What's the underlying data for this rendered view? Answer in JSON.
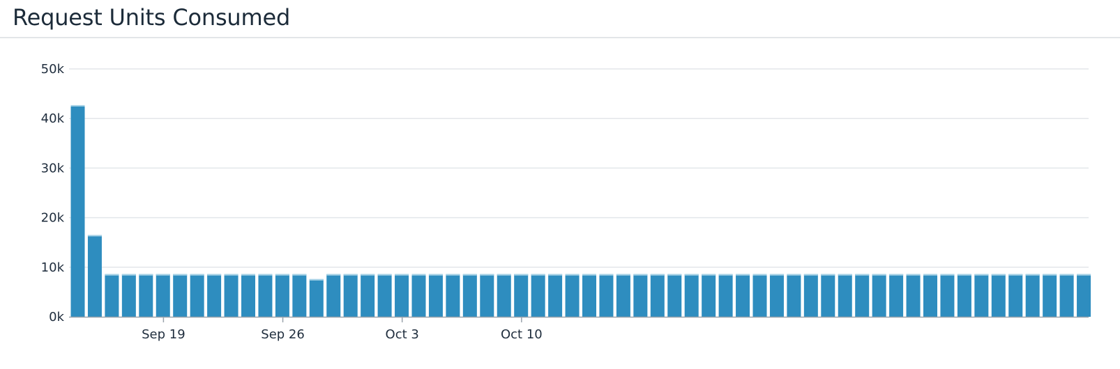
{
  "widget": {
    "title": "Request Units Consumed"
  },
  "chart_data": {
    "type": "bar",
    "title": "Request Units Consumed",
    "xlabel": "",
    "ylabel": "",
    "ylim": [
      0,
      50000
    ],
    "yticks": [
      {
        "value": 0,
        "label": "0k"
      },
      {
        "value": 10000,
        "label": "10k"
      },
      {
        "value": 20000,
        "label": "20k"
      },
      {
        "value": 30000,
        "label": "30k"
      },
      {
        "value": 40000,
        "label": "40k"
      },
      {
        "value": 50000,
        "label": "50k"
      }
    ],
    "grid": true,
    "legend": "none",
    "bar_color": "#2e8dbf",
    "x": [
      "2023-09-17",
      "2023-09-18",
      "2023-09-19",
      "2023-09-20",
      "2023-09-21",
      "2023-09-22",
      "2023-09-23",
      "2023-09-24",
      "2023-09-25",
      "2023-09-26",
      "2023-09-27",
      "2023-09-28",
      "2023-09-29",
      "2023-09-30",
      "2023-10-01",
      "2023-10-02",
      "2023-10-03",
      "2023-10-04",
      "2023-10-05",
      "2023-10-06",
      "2023-10-07",
      "2023-10-08",
      "2023-10-09",
      "2023-10-10",
      "2023-10-11",
      "2023-10-12",
      "2023-10-13",
      "2023-10-14",
      "2023-10-15",
      "2023-10-16",
      "2023-10-17",
      "2023-10-18",
      "2023-10-19",
      "2023-10-20",
      "2023-10-21",
      "2023-10-22",
      "2023-10-23",
      "2023-10-24",
      "2023-10-25",
      "2023-10-26",
      "2023-10-27",
      "2023-10-28",
      "2023-10-29",
      "2023-10-30",
      "2023-10-31",
      "2023-11-01",
      "2023-11-02",
      "2023-11-03",
      "2023-11-04",
      "2023-11-05",
      "2023-11-06",
      "2023-11-07",
      "2023-11-08",
      "2023-11-09",
      "2023-11-10",
      "2023-11-11",
      "2023-11-12",
      "2023-11-13",
      "2023-11-14",
      "2023-11-15"
    ],
    "values": [
      42700,
      16500,
      8600,
      8600,
      8600,
      8600,
      8600,
      8600,
      8600,
      8600,
      8600,
      8600,
      8600,
      8600,
      7600,
      8600,
      8600,
      8600,
      8600,
      8600,
      8600,
      8600,
      8600,
      8600,
      8600,
      8600,
      8600,
      8600,
      8600,
      8600,
      8600,
      8600,
      8600,
      8600,
      8600,
      8600,
      8600,
      8600,
      8600,
      8600,
      8600,
      8600,
      8600,
      8600,
      8600,
      8600,
      8600,
      8600,
      8600,
      8600,
      8600,
      8600,
      8600,
      8600,
      8600,
      8600,
      8600,
      8600,
      8600,
      8600
    ],
    "xticks": [
      {
        "label": "Sep 19"
      },
      {
        "label": "Sep 26"
      },
      {
        "label": "Oct 3"
      },
      {
        "label": "Oct 10"
      }
    ]
  }
}
